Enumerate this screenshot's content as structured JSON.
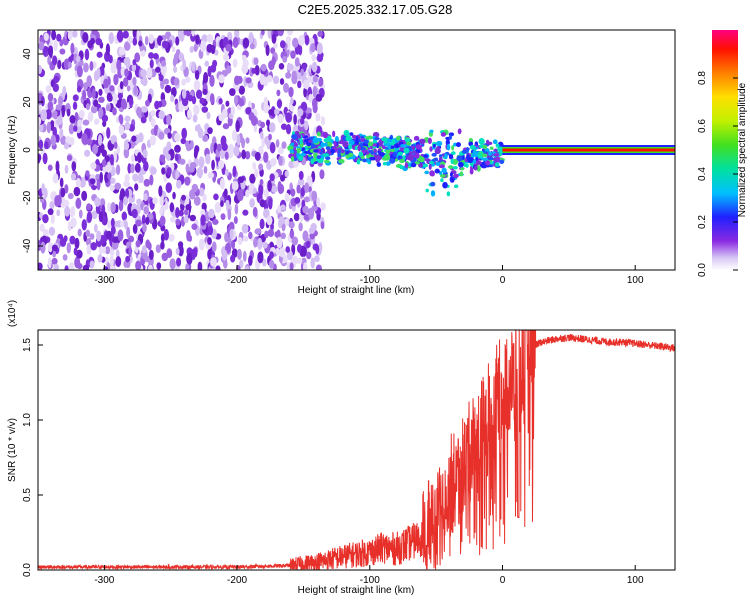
{
  "chart_data": [
    {
      "type": "heatmap",
      "title": "C2E5.2025.332.17.05.G28",
      "xlabel": "Height of straight line (km)",
      "ylabel": "Frequency (Hz)",
      "xlim": [
        -350,
        130
      ],
      "ylim": [
        -50,
        50
      ],
      "xticks": [
        -300,
        -200,
        -100,
        0,
        100
      ],
      "yticks": [
        -40,
        -20,
        0,
        20,
        40
      ],
      "colorbar": {
        "label": "Normalized spectral amplitude",
        "range": [
          0,
          1
        ],
        "ticks": [
          "0.0",
          "0.2",
          "0.4",
          "0.6",
          "0.8"
        ]
      },
      "regions": [
        {
          "name": "noise",
          "x_range": [
            -350,
            -140
          ],
          "freq_range": [
            -50,
            50
          ],
          "amplitude": "low (0.0-0.1)"
        },
        {
          "name": "emerging-signal",
          "x_range": [
            -160,
            0
          ],
          "freq_center_range": [
            -5,
            5
          ],
          "amplitude": "0.2-0.5"
        },
        {
          "name": "steady-tone",
          "x_range": [
            0,
            130
          ],
          "freq_center": 0,
          "amplitude": "1.0"
        }
      ]
    },
    {
      "type": "line",
      "xlabel": "Height of straight line (km)",
      "ylabel": "SNR (10 * v/v)",
      "scale_note": "(x10⁴)",
      "xlim": [
        -350,
        130
      ],
      "ylim": [
        0,
        1.6
      ],
      "xticks": [
        -300,
        -200,
        -100,
        0,
        100
      ],
      "yticks": [
        "0.0",
        "0.5",
        "1.0",
        "1.5"
      ],
      "series": [
        {
          "name": "SNR",
          "color": "#e8302a",
          "x": [
            -350,
            -300,
            -250,
            -200,
            -160,
            -140,
            -120,
            -100,
            -90,
            -80,
            -70,
            -60,
            -50,
            -45,
            -40,
            -35,
            -30,
            -25,
            -20,
            -15,
            -10,
            -5,
            0,
            5,
            10,
            15,
            20,
            25,
            30,
            40,
            50,
            60,
            70,
            80,
            90,
            100,
            110,
            120,
            130
          ],
          "values": [
            0.02,
            0.02,
            0.02,
            0.02,
            0.03,
            0.05,
            0.09,
            0.12,
            0.15,
            0.14,
            0.18,
            0.22,
            0.3,
            0.42,
            0.55,
            0.6,
            0.7,
            0.78,
            0.88,
            0.95,
            1.05,
            1.15,
            1.22,
            1.25,
            1.3,
            1.38,
            1.45,
            1.5,
            1.52,
            1.54,
            1.55,
            1.54,
            1.53,
            1.52,
            1.52,
            1.51,
            1.5,
            1.49,
            1.48
          ]
        }
      ]
    }
  ]
}
